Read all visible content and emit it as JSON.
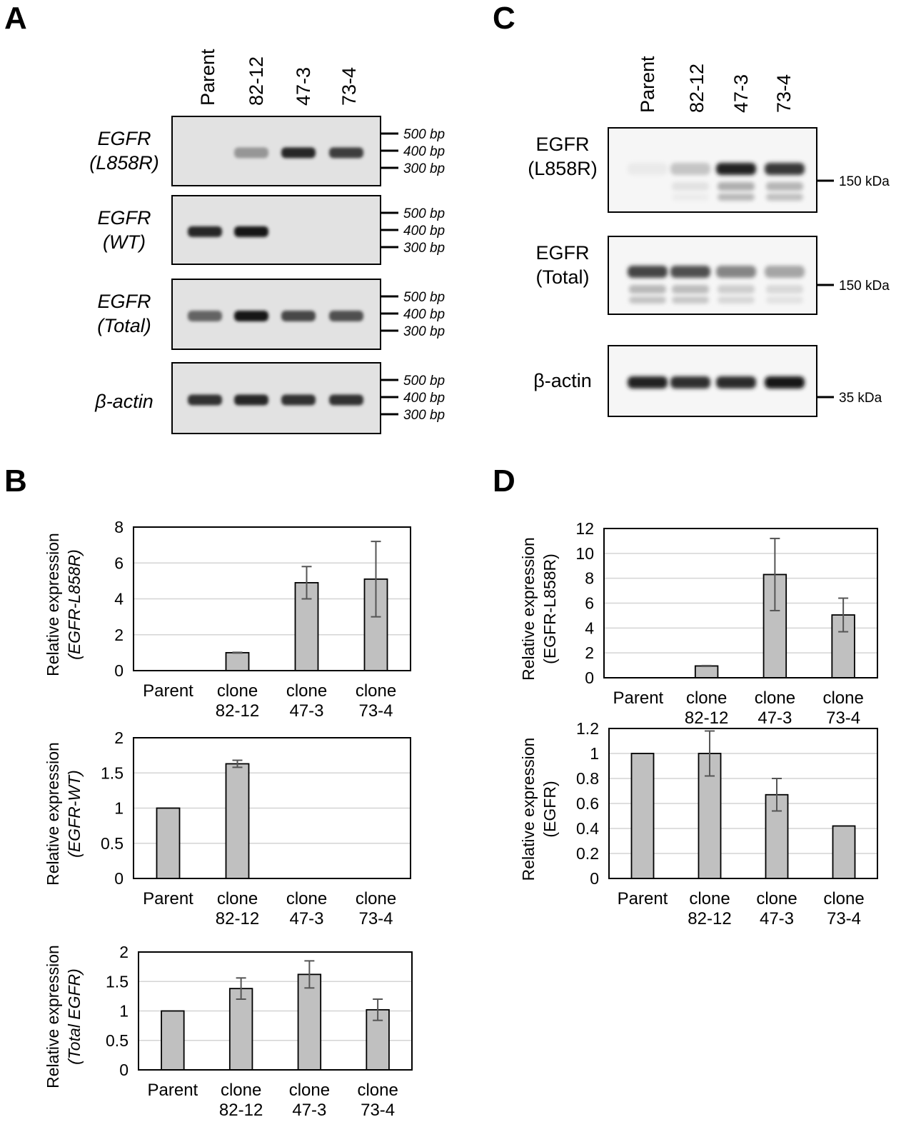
{
  "panels": {
    "A": "A",
    "B": "B",
    "C": "C",
    "D": "D"
  },
  "gel": {
    "lanes": [
      "Parent",
      "82-12",
      "47-3",
      "73-4"
    ],
    "markers": [
      "500 bp",
      "400 bp",
      "300 bp"
    ],
    "rows": [
      {
        "label_line1": "EGFR",
        "label_line2": "(L858R)",
        "band_intensity": [
          0.0,
          0.35,
          0.9,
          0.8
        ]
      },
      {
        "label_line1": "EGFR",
        "label_line2": "(WT)",
        "band_intensity": [
          0.9,
          1.0,
          0.0,
          0.0
        ]
      },
      {
        "label_line1": "EGFR",
        "label_line2": "(Total)",
        "band_intensity": [
          0.6,
          1.0,
          0.75,
          0.7
        ]
      },
      {
        "label_line1": "β-actin",
        "label_line2": "",
        "band_intensity": [
          0.85,
          0.9,
          0.85,
          0.85
        ]
      }
    ]
  },
  "western": {
    "lanes": [
      "Parent",
      "82-12",
      "47-3",
      "73-4"
    ],
    "blots": [
      {
        "label_line1": "EGFR",
        "label_line2": "(L858R)",
        "marker": "150 kDa",
        "band_intensity": [
          0.03,
          0.2,
          0.95,
          0.85
        ]
      },
      {
        "label_line1": "EGFR",
        "label_line2": "(Total)",
        "marker": "150 kDa",
        "band_intensity": [
          0.8,
          0.75,
          0.5,
          0.35
        ]
      },
      {
        "label_line1": "β-actin",
        "label_line2": "",
        "marker": "35 kDa",
        "band_intensity": [
          0.95,
          0.9,
          0.92,
          1.0
        ]
      }
    ]
  },
  "chart_data": [
    {
      "panel": "B",
      "type": "bar",
      "categories": [
        [
          "Parent",
          ""
        ],
        [
          "clone",
          "82-12"
        ],
        [
          "clone",
          "47-3"
        ],
        [
          "clone",
          "73-4"
        ]
      ],
      "values": [
        0,
        1,
        4.9,
        5.1
      ],
      "errors": [
        0,
        0.02,
        0.9,
        2.1
      ],
      "ylim": [
        0,
        8
      ],
      "yticks": [
        0,
        2,
        4,
        6,
        8
      ],
      "ylabel_line1": "Relative expression",
      "ylabel_line2": "(EGFR-L858R)",
      "ylabel_italic": true,
      "grid": true
    },
    {
      "panel": "B",
      "type": "bar",
      "categories": [
        [
          "Parent",
          ""
        ],
        [
          "clone",
          "82-12"
        ],
        [
          "clone",
          "47-3"
        ],
        [
          "clone",
          "73-4"
        ]
      ],
      "values": [
        1,
        1.63,
        0,
        0
      ],
      "errors": [
        0,
        0.05,
        0,
        0
      ],
      "ylim": [
        0,
        2
      ],
      "yticks": [
        0,
        0.5,
        1,
        1.5,
        2
      ],
      "ylabel_line1": "Relative expression",
      "ylabel_line2": "(EGFR-WT)",
      "ylabel_italic": true,
      "grid": true
    },
    {
      "panel": "B",
      "type": "bar",
      "categories": [
        [
          "Parent",
          ""
        ],
        [
          "clone",
          "82-12"
        ],
        [
          "clone",
          "47-3"
        ],
        [
          "clone",
          "73-4"
        ]
      ],
      "values": [
        1,
        1.38,
        1.62,
        1.02
      ],
      "errors": [
        0,
        0.18,
        0.23,
        0.18
      ],
      "ylim": [
        0,
        2
      ],
      "yticks": [
        0,
        0.5,
        1,
        1.5,
        2
      ],
      "ylabel_line1": "Relative expression",
      "ylabel_line2": "(Total EGFR)",
      "ylabel_italic": true,
      "grid": true
    },
    {
      "panel": "D",
      "type": "bar",
      "categories": [
        [
          "Parent",
          ""
        ],
        [
          "clone",
          "82-12"
        ],
        [
          "clone",
          "47-3"
        ],
        [
          "clone",
          "73-4"
        ]
      ],
      "values": [
        0,
        0.95,
        8.3,
        5.05
      ],
      "errors": [
        0,
        0.03,
        2.9,
        1.35
      ],
      "ylim": [
        0,
        12
      ],
      "yticks": [
        0,
        2,
        4,
        6,
        8,
        10,
        12
      ],
      "ylabel_line1": "Relative expression",
      "ylabel_line2": "(EGFR-L858R)",
      "ylabel_italic": false,
      "grid": true
    },
    {
      "panel": "D",
      "type": "bar",
      "categories": [
        [
          "Parent",
          ""
        ],
        [
          "clone",
          "82-12"
        ],
        [
          "clone",
          "47-3"
        ],
        [
          "clone",
          "73-4"
        ]
      ],
      "values": [
        1,
        1.0,
        0.67,
        0.42
      ],
      "errors": [
        0,
        0.18,
        0.13,
        0.01
      ],
      "ylim": [
        0,
        1.2
      ],
      "yticks": [
        0,
        0.2,
        0.4,
        0.6,
        0.8,
        1,
        1.2
      ],
      "ylabel_line1": "Relative expression",
      "ylabel_line2": "(EGFR)",
      "ylabel_italic": false,
      "grid": true
    }
  ]
}
